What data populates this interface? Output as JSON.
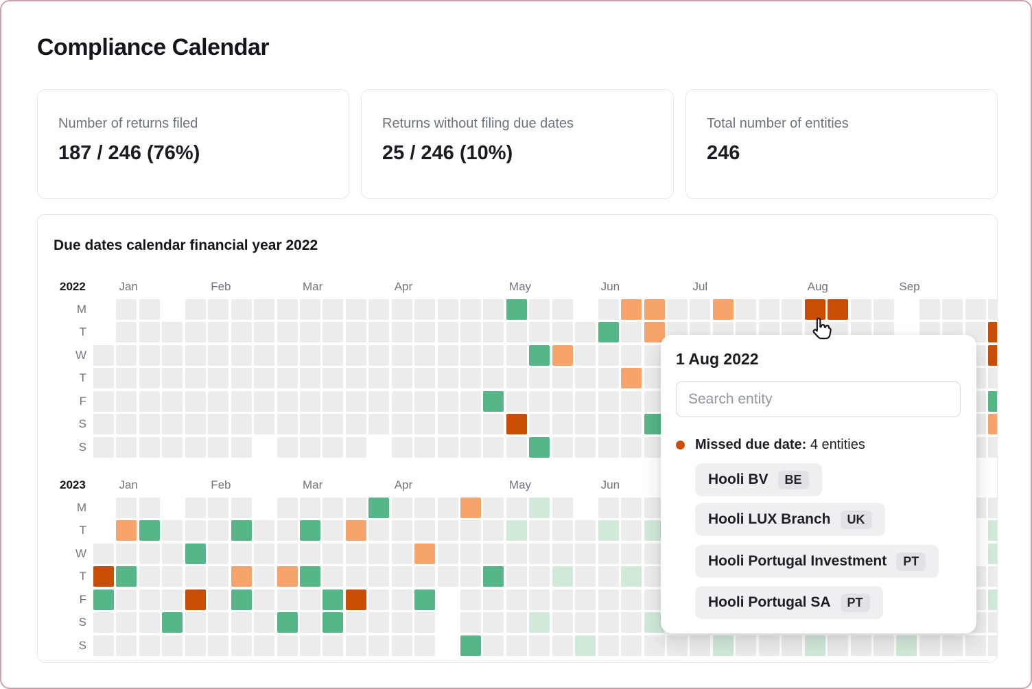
{
  "page": {
    "title": "Compliance Calendar"
  },
  "stats": [
    {
      "label": "Number of returns filed",
      "value": "187 / 246 (76%)"
    },
    {
      "label": "Returns without filing due dates",
      "value": "25 / 246 (10%)"
    },
    {
      "label": "Total number of entities",
      "value": "246"
    }
  ],
  "calendar_section": {
    "title": "Due dates calendar financial year 2022"
  },
  "popover": {
    "date_title": "1 Aug 2022",
    "search_placeholder": "Search entity",
    "missed_label": "Missed due date:",
    "missed_count": "4 entities",
    "dot_color": "#cc4e06",
    "entities": [
      {
        "name": "Hooli BV",
        "country": "BE"
      },
      {
        "name": "Hooli LUX Branch",
        "country": "UK"
      },
      {
        "name": "Hooli Portugal Investment",
        "country": "PT"
      },
      {
        "name": "Hooli Portugal SA",
        "country": "PT"
      }
    ]
  },
  "chart_data": {
    "type": "heatmap",
    "columns": 40,
    "row_labels": [
      "M",
      "T",
      "W",
      "T",
      "F",
      "S",
      "S"
    ],
    "months": [
      {
        "label": "Jan",
        "col": 1
      },
      {
        "label": "Feb",
        "col": 5
      },
      {
        "label": "Mar",
        "col": 9
      },
      {
        "label": "Apr",
        "col": 13
      },
      {
        "label": "May",
        "col": 18
      },
      {
        "label": "Jun",
        "col": 22
      },
      {
        "label": "Jul",
        "col": 26
      },
      {
        "label": "Aug",
        "col": 31
      },
      {
        "label": "Sep",
        "col": 35
      }
    ],
    "status_colors": {
      "empty": "#ececec",
      "green": "#57b687",
      "light_green": "#d1e9d9",
      "orange": "#f6a46b",
      "dark_orange": "#c94e04"
    },
    "calendars": [
      {
        "year": "2022",
        "rows": [
          {
            "label": "M",
            "missing": [
              0,
              3,
              21,
              35
            ],
            "cells": {
              "18": "green",
              "23": "orange",
              "24": "orange",
              "27": "orange",
              "31": "dark_orange",
              "32": "dark_orange"
            }
          },
          {
            "label": "T",
            "missing": [
              0,
              35
            ],
            "cells": {
              "22": "green",
              "24": "orange",
              "39": "dark_orange"
            }
          },
          {
            "label": "W",
            "missing": [],
            "cells": {
              "19": "green",
              "20": "orange",
              "39": "dark_orange"
            }
          },
          {
            "label": "T",
            "missing": [],
            "cells": {
              "23": "orange"
            }
          },
          {
            "label": "F",
            "missing": [],
            "cells": {
              "17": "green",
              "39": "green"
            }
          },
          {
            "label": "S",
            "missing": [],
            "cells": {
              "18": "dark_orange",
              "24": "green",
              "39": "orange"
            }
          },
          {
            "label": "S",
            "missing": [
              7,
              12
            ],
            "cells": {
              "19": "green"
            }
          }
        ]
      },
      {
        "year": "2023",
        "rows": [
          {
            "label": "M",
            "missing": [
              0,
              3,
              7,
              21
            ],
            "cells": {
              "12": "green",
              "16": "orange",
              "19": "light_green"
            }
          },
          {
            "label": "T",
            "missing": [
              0,
              38
            ],
            "cells": {
              "1": "orange",
              "2": "green",
              "6": "green",
              "9": "green",
              "11": "orange",
              "18": "light_green",
              "22": "light_green",
              "24": "light_green",
              "39": "light_green"
            }
          },
          {
            "label": "W",
            "missing": [
              38
            ],
            "cells": {
              "4": "green",
              "14": "orange",
              "39": "light_green"
            }
          },
          {
            "label": "T",
            "missing": [],
            "cells": {
              "0": "dark_orange",
              "1": "green",
              "6": "orange",
              "8": "orange",
              "9": "green",
              "17": "green",
              "20": "light_green",
              "23": "light_green"
            }
          },
          {
            "label": "F",
            "missing": [
              15
            ],
            "cells": {
              "0": "green",
              "4": "dark_orange",
              "6": "green",
              "10": "green",
              "11": "dark_orange",
              "14": "green",
              "39": "light_green"
            }
          },
          {
            "label": "S",
            "missing": [
              15
            ],
            "cells": {
              "3": "green",
              "8": "green",
              "10": "green",
              "19": "light_green",
              "24": "light_green"
            }
          },
          {
            "label": "S",
            "missing": [
              15
            ],
            "cells": {
              "16": "green",
              "21": "light_green",
              "27": "light_green",
              "31": "light_green",
              "35": "light_green"
            }
          }
        ]
      }
    ]
  }
}
